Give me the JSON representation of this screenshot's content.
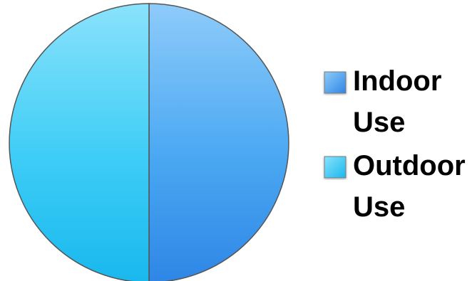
{
  "chart_data": {
    "type": "pie",
    "title": "",
    "slices": [
      {
        "label": "Indoor Use",
        "label_lines": [
          "Indoor",
          "Use"
        ],
        "value": 50,
        "color": "#4aa8f2",
        "color_light": "#8ecbfa",
        "color_dark": "#2f86e6"
      },
      {
        "label": "Outdoor Use",
        "label_lines": [
          "Outdoor",
          "Use"
        ],
        "value": 50,
        "color": "#3ecdf6",
        "color_light": "#8ae2fb",
        "color_dark": "#19b8ee"
      }
    ],
    "start_angle": "12 o'clock",
    "direction": "clockwise",
    "legend": "right",
    "border_color": "#555555"
  }
}
